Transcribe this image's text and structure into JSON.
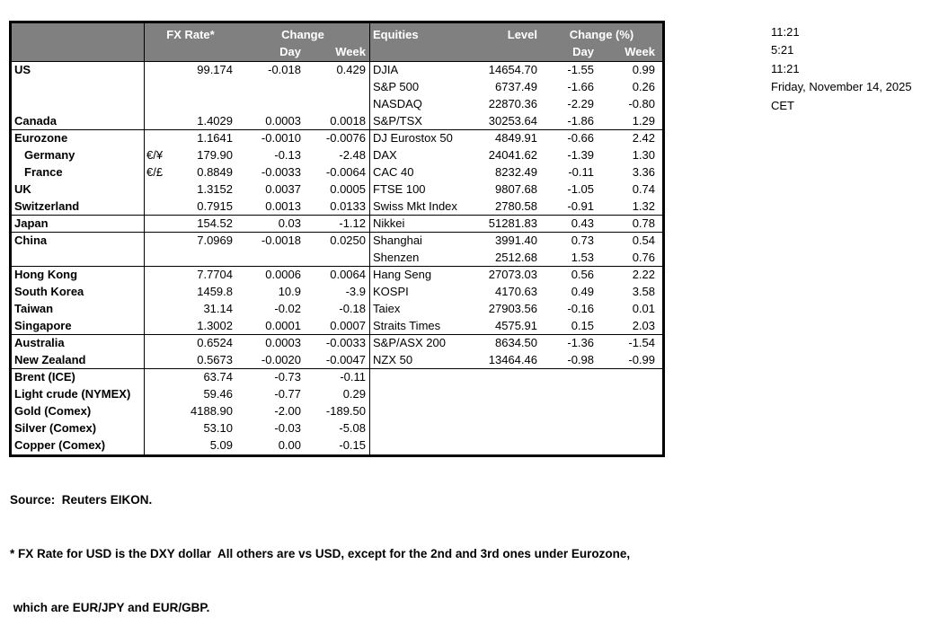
{
  "table": {
    "header": {
      "fx_rate": "FX Rate*",
      "change": "Change",
      "day": "Day",
      "week": "Week",
      "equities": "Equities",
      "level": "Level",
      "change_pct": "Change (%)"
    },
    "rows": [
      {
        "name": "US",
        "indent": false,
        "pair": "",
        "fx": "99.174",
        "fx_day": "-0.018",
        "fx_week": "0.429",
        "equity": "DJIA",
        "level": "14654.70",
        "eq_day": "-1.55",
        "eq_week": "0.99",
        "group_end": false
      },
      {
        "name": "",
        "indent": false,
        "pair": "",
        "fx": "",
        "fx_day": "",
        "fx_week": "",
        "equity": "S&P 500",
        "level": "6737.49",
        "eq_day": "-1.66",
        "eq_week": "0.26",
        "group_end": false
      },
      {
        "name": "",
        "indent": false,
        "pair": "",
        "fx": "",
        "fx_day": "",
        "fx_week": "",
        "equity": "NASDAQ",
        "level": "22870.36",
        "eq_day": "-2.29",
        "eq_week": "-0.80",
        "group_end": false
      },
      {
        "name": "Canada",
        "indent": false,
        "pair": "",
        "fx": "1.4029",
        "fx_day": "0.0003",
        "fx_week": "0.0018",
        "equity": "S&P/TSX",
        "level": "30253.64",
        "eq_day": "-1.86",
        "eq_week": "1.29",
        "group_end": true
      },
      {
        "name": "Eurozone",
        "indent": false,
        "pair": "",
        "fx": "1.1641",
        "fx_day": "-0.0010",
        "fx_week": "-0.0076",
        "equity": "DJ Eurostox 50",
        "level": "4849.91",
        "eq_day": "-0.66",
        "eq_week": "2.42",
        "group_end": false
      },
      {
        "name": "Germany",
        "indent": true,
        "pair": "€/¥",
        "fx": "179.90",
        "fx_day": "-0.13",
        "fx_week": "-2.48",
        "equity": "DAX",
        "level": "24041.62",
        "eq_day": "-1.39",
        "eq_week": "1.30",
        "group_end": false
      },
      {
        "name": "France",
        "indent": true,
        "pair": "€/£",
        "fx": "0.8849",
        "fx_day": "-0.0033",
        "fx_week": "-0.0064",
        "equity": "CAC 40",
        "level": "8232.49",
        "eq_day": "-0.11",
        "eq_week": "3.36",
        "group_end": false
      },
      {
        "name": "UK",
        "indent": false,
        "pair": "",
        "fx": "1.3152",
        "fx_day": "0.0037",
        "fx_week": "0.0005",
        "equity": "FTSE 100",
        "level": "9807.68",
        "eq_day": "-1.05",
        "eq_week": "0.74",
        "group_end": false
      },
      {
        "name": "Switzerland",
        "indent": false,
        "pair": "",
        "fx": "0.7915",
        "fx_day": "0.0013",
        "fx_week": "0.0133",
        "equity": "Swiss Mkt Index",
        "level": "2780.58",
        "eq_day": "-0.91",
        "eq_week": "1.32",
        "group_end": true
      },
      {
        "name": "Japan",
        "indent": false,
        "pair": "",
        "fx": "154.52",
        "fx_day": "0.03",
        "fx_week": "-1.12",
        "equity": "Nikkei",
        "level": "51281.83",
        "eq_day": "0.43",
        "eq_week": "0.78",
        "group_end": true
      },
      {
        "name": "China",
        "indent": false,
        "pair": "",
        "fx": "7.0969",
        "fx_day": "-0.0018",
        "fx_week": "0.0250",
        "equity": "Shanghai",
        "level": "3991.40",
        "eq_day": "0.73",
        "eq_week": "0.54",
        "group_end": false
      },
      {
        "name": "",
        "indent": false,
        "pair": "",
        "fx": "",
        "fx_day": "",
        "fx_week": "",
        "equity": "Shenzen",
        "level": "2512.68",
        "eq_day": "1.53",
        "eq_week": "0.76",
        "group_end": true
      },
      {
        "name": "Hong Kong",
        "indent": false,
        "pair": "",
        "fx": "7.7704",
        "fx_day": "0.0006",
        "fx_week": "0.0064",
        "equity": "Hang Seng",
        "level": "27073.03",
        "eq_day": "0.56",
        "eq_week": "2.22",
        "group_end": false
      },
      {
        "name": "South Korea",
        "indent": false,
        "pair": "",
        "fx": "1459.8",
        "fx_day": "10.9",
        "fx_week": "-3.9",
        "equity": "KOSPI",
        "level": "4170.63",
        "eq_day": "0.49",
        "eq_week": "3.58",
        "group_end": false
      },
      {
        "name": "Taiwan",
        "indent": false,
        "pair": "",
        "fx": "31.14",
        "fx_day": "-0.02",
        "fx_week": "-0.18",
        "equity": "Taiex",
        "level": "27903.56",
        "eq_day": "-0.16",
        "eq_week": "0.01",
        "group_end": false
      },
      {
        "name": "Singapore",
        "indent": false,
        "pair": "",
        "fx": "1.3002",
        "fx_day": "0.0001",
        "fx_week": "0.0007",
        "equity": "Straits Times",
        "level": "4575.91",
        "eq_day": "0.15",
        "eq_week": "2.03",
        "group_end": true
      },
      {
        "name": "Australia",
        "indent": false,
        "pair": "",
        "fx": "0.6524",
        "fx_day": "0.0003",
        "fx_week": "-0.0033",
        "equity": "S&P/ASX 200",
        "level": "8634.50",
        "eq_day": "-1.36",
        "eq_week": "-1.54",
        "group_end": false
      },
      {
        "name": "New Zealand",
        "indent": false,
        "pair": "",
        "fx": "0.5673",
        "fx_day": "-0.0020",
        "fx_week": "-0.0047",
        "equity": "NZX 50",
        "level": "13464.46",
        "eq_day": "-0.98",
        "eq_week": "-0.99",
        "group_end": true
      },
      {
        "name": "Brent (ICE)",
        "indent": false,
        "pair": "",
        "fx": "63.74",
        "fx_day": "-0.73",
        "fx_week": "-0.11",
        "equity": "",
        "level": "",
        "eq_day": "",
        "eq_week": "",
        "group_end": false
      },
      {
        "name": "Light crude (NYMEX)",
        "indent": false,
        "pair": "",
        "fx": "59.46",
        "fx_day": "-0.77",
        "fx_week": "0.29",
        "equity": "",
        "level": "",
        "eq_day": "",
        "eq_week": "",
        "group_end": false
      },
      {
        "name": "Gold (Comex)",
        "indent": false,
        "pair": "",
        "fx": "4188.90",
        "fx_day": "-2.00",
        "fx_week": "-189.50",
        "equity": "",
        "level": "",
        "eq_day": "",
        "eq_week": "",
        "group_end": false
      },
      {
        "name": "Silver (Comex)",
        "indent": false,
        "pair": "",
        "fx": "53.10",
        "fx_day": "-0.03",
        "fx_week": "-5.08",
        "equity": "",
        "level": "",
        "eq_day": "",
        "eq_week": "",
        "group_end": false
      },
      {
        "name": "Copper (Comex)",
        "indent": false,
        "pair": "",
        "fx": "5.09",
        "fx_day": "0.00",
        "fx_week": "-0.15",
        "equity": "",
        "level": "",
        "eq_day": "",
        "eq_week": "",
        "group_end": false
      }
    ]
  },
  "info": {
    "lines": [
      "11:21",
      "5:21",
      "11:21",
      "Friday, November 14, 2025",
      "CET"
    ]
  },
  "footer": {
    "source": "Source:  Reuters EIKON.",
    "note1": "* FX Rate for USD is the DXY dollar  All others are vs USD, except for the 2nd and 3rd ones under Eurozone,",
    "note2": " which are EUR/JPY and EUR/GBP."
  },
  "colors": {
    "header_bg": "#808080",
    "header_text": "#ffffff",
    "border": "#000000"
  }
}
